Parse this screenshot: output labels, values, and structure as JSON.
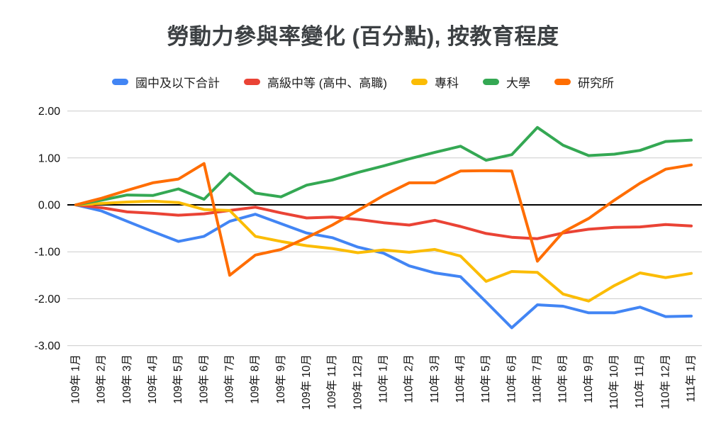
{
  "page": {
    "title": "勞動力參與率變化 (百分點), 按教育程度"
  },
  "chart_data": {
    "type": "line",
    "title": "勞動力參與率變化 (百分點), 按教育程度",
    "xlabel": "",
    "ylabel": "",
    "ylim": [
      -3.0,
      2.0
    ],
    "grid": true,
    "legend_position": "top",
    "yticks": [
      "2.00",
      "1.00",
      "0.00",
      "-1.00",
      "-2.00",
      "-3.00"
    ],
    "categories": [
      "109年 1月",
      "109年 2月",
      "109年 3月",
      "109年 4月",
      "109年 5月",
      "109年 6月",
      "109年 7月",
      "109年 8月",
      "109年 9月",
      "109年 10月",
      "109年 11月",
      "109年 12月",
      "110年 1月",
      "110年 2月",
      "110年 3月",
      "110年 4月",
      "110年 5月",
      "110年 6月",
      "110年 7月",
      "110年 8月",
      "110年 9月",
      "110年 10月",
      "110年 11月",
      "110年 12月",
      "111年 1月"
    ],
    "series": [
      {
        "name": "國中及以下合計",
        "key": "junior-high-and-below",
        "color": "#4285F4",
        "values": [
          0.0,
          -0.13,
          -0.35,
          -0.57,
          -0.78,
          -0.67,
          -0.35,
          -0.2,
          -0.4,
          -0.6,
          -0.7,
          -0.9,
          -1.03,
          -1.3,
          -1.45,
          -1.53,
          -2.07,
          -2.62,
          -2.13,
          -2.16,
          -2.3,
          -2.3,
          -2.18,
          -2.38,
          -2.37
        ]
      },
      {
        "name": "高級中等 (高中、高職)",
        "key": "senior-high",
        "color": "#EA4335",
        "values": [
          0.0,
          -0.06,
          -0.15,
          -0.18,
          -0.22,
          -0.19,
          -0.12,
          -0.05,
          -0.17,
          -0.28,
          -0.26,
          -0.31,
          -0.38,
          -0.43,
          -0.33,
          -0.46,
          -0.61,
          -0.69,
          -0.72,
          -0.6,
          -0.52,
          -0.48,
          -0.47,
          -0.42,
          -0.45
        ]
      },
      {
        "name": "專科",
        "key": "junior-college",
        "color": "#FBBC04",
        "values": [
          0.0,
          0.03,
          0.06,
          0.08,
          0.05,
          -0.1,
          -0.12,
          -0.67,
          -0.78,
          -0.87,
          -0.93,
          -1.02,
          -0.96,
          -1.01,
          -0.95,
          -1.09,
          -1.63,
          -1.42,
          -1.44,
          -1.9,
          -2.05,
          -1.72,
          -1.45,
          -1.55,
          -1.46
        ]
      },
      {
        "name": "大學",
        "key": "university",
        "color": "#34A853",
        "values": [
          0.0,
          0.1,
          0.21,
          0.2,
          0.34,
          0.12,
          0.67,
          0.25,
          0.17,
          0.42,
          0.53,
          0.69,
          0.83,
          0.98,
          1.12,
          1.25,
          0.95,
          1.07,
          1.65,
          1.27,
          1.05,
          1.08,
          1.16,
          1.35,
          1.38
        ]
      },
      {
        "name": "研究所",
        "key": "graduate-school",
        "color": "#FF6D01",
        "values": [
          0.0,
          0.14,
          0.31,
          0.47,
          0.55,
          0.88,
          -1.5,
          -1.07,
          -0.95,
          -0.7,
          -0.43,
          -0.12,
          0.2,
          0.47,
          0.47,
          0.72,
          0.73,
          0.72,
          -1.2,
          -0.58,
          -0.29,
          0.1,
          0.46,
          0.76,
          0.85
        ]
      }
    ],
    "colors": {
      "gridline": "#cccccc",
      "zero_line": "#000000",
      "axis_text": "#111111",
      "title_text": "#3c4043"
    }
  }
}
